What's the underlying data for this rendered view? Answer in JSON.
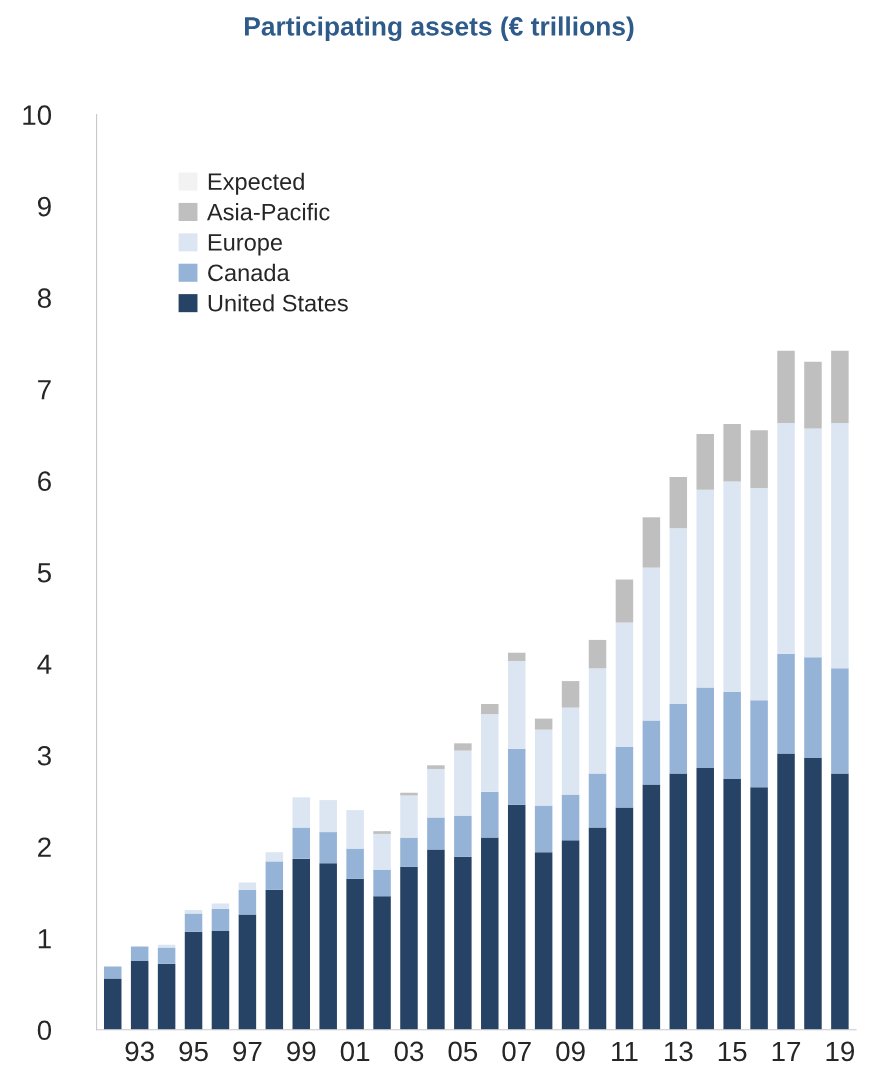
{
  "chart_data": {
    "type": "bar",
    "title": "Participating assets (€ trillions)",
    "stacked": true,
    "categories": [
      null,
      "93",
      null,
      "95",
      null,
      "97",
      null,
      "99",
      null,
      "01",
      null,
      "03",
      null,
      "05",
      null,
      "07",
      null,
      "09",
      null,
      "11",
      null,
      "13",
      null,
      "15",
      null,
      "17",
      null,
      "19"
    ],
    "series": [
      {
        "name": "United States",
        "color": "#264365",
        "values": [
          0.56,
          0.75,
          0.72,
          1.07,
          1.08,
          1.26,
          1.53,
          1.87,
          1.82,
          1.65,
          1.46,
          1.78,
          1.97,
          1.89,
          2.1,
          2.46,
          1.94,
          2.07,
          2.21,
          2.43,
          2.68,
          2.8,
          2.86,
          2.74,
          2.65,
          3.02,
          2.97,
          2.8
        ]
      },
      {
        "name": "Canada",
        "color": "#95b3d7",
        "values": [
          0.13,
          0.16,
          0.18,
          0.2,
          0.24,
          0.27,
          0.31,
          0.34,
          0.34,
          0.33,
          0.29,
          0.32,
          0.35,
          0.45,
          0.5,
          0.61,
          0.51,
          0.5,
          0.59,
          0.66,
          0.7,
          0.76,
          0.88,
          0.95,
          0.95,
          1.09,
          1.1,
          1.15
        ]
      },
      {
        "name": "Europe",
        "color": "#dce6f2",
        "values": [
          null,
          null,
          0.03,
          0.04,
          0.06,
          0.08,
          0.1,
          0.33,
          0.35,
          0.42,
          0.39,
          0.46,
          0.53,
          0.71,
          0.85,
          0.96,
          0.83,
          0.95,
          1.15,
          1.36,
          1.67,
          1.92,
          2.16,
          2.3,
          2.32,
          2.52,
          2.5,
          2.68
        ]
      },
      {
        "name": "Asia-Pacific",
        "color": "#bfbfbf",
        "values": [
          null,
          null,
          null,
          null,
          null,
          null,
          null,
          null,
          null,
          null,
          0.03,
          0.03,
          0.04,
          0.08,
          0.11,
          0.09,
          0.12,
          0.29,
          0.31,
          0.47,
          0.55,
          0.56,
          0.61,
          0.63,
          0.63,
          0.79,
          0.73,
          0.79
        ]
      },
      {
        "name": "Expected",
        "color": "#f2f2f2",
        "values": [
          null,
          null,
          null,
          null,
          null,
          null,
          null,
          null,
          null,
          null,
          null,
          null,
          null,
          null,
          null,
          null,
          null,
          null,
          null,
          null,
          null,
          null,
          null,
          null,
          null,
          null,
          null,
          null
        ]
      }
    ],
    "ylim": [
      0,
      10
    ],
    "yticks": [
      0,
      1,
      2,
      3,
      4,
      5,
      6,
      7,
      8,
      9,
      10
    ],
    "grid": false,
    "legend": "top left"
  }
}
